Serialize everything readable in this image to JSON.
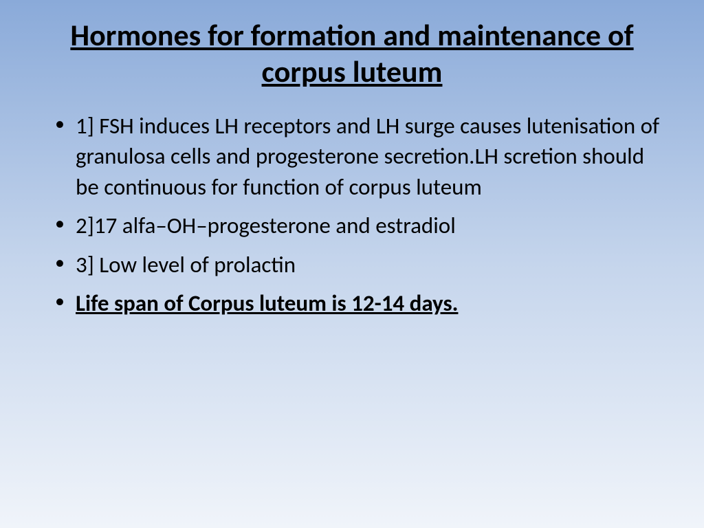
{
  "slide": {
    "title": "Hormones for formation and maintenance of corpus luteum",
    "bullets": [
      {
        "text": "1] FSH induces LH receptors and LH surge causes lutenisation of granulosa cells and progesterone secretion.LH scretion should be continuous for function of corpus luteum",
        "bold_underline": false
      },
      {
        "text": "2]17 alfa–OH–progesterone and estradiol",
        "bold_underline": false
      },
      {
        "text": "3] Low level of prolactin",
        "bold_underline": false
      },
      {
        "text": "Life span of Corpus luteum is 12-14 days.",
        "bold_underline": true
      }
    ],
    "background_gradient": {
      "top": "#8aaad9",
      "mid": "#c5d5ec",
      "bottom": "#f0f4fa"
    },
    "title_fontsize": 44,
    "body_fontsize": 33,
    "font_family": "Calibri",
    "text_color": "#000000"
  }
}
